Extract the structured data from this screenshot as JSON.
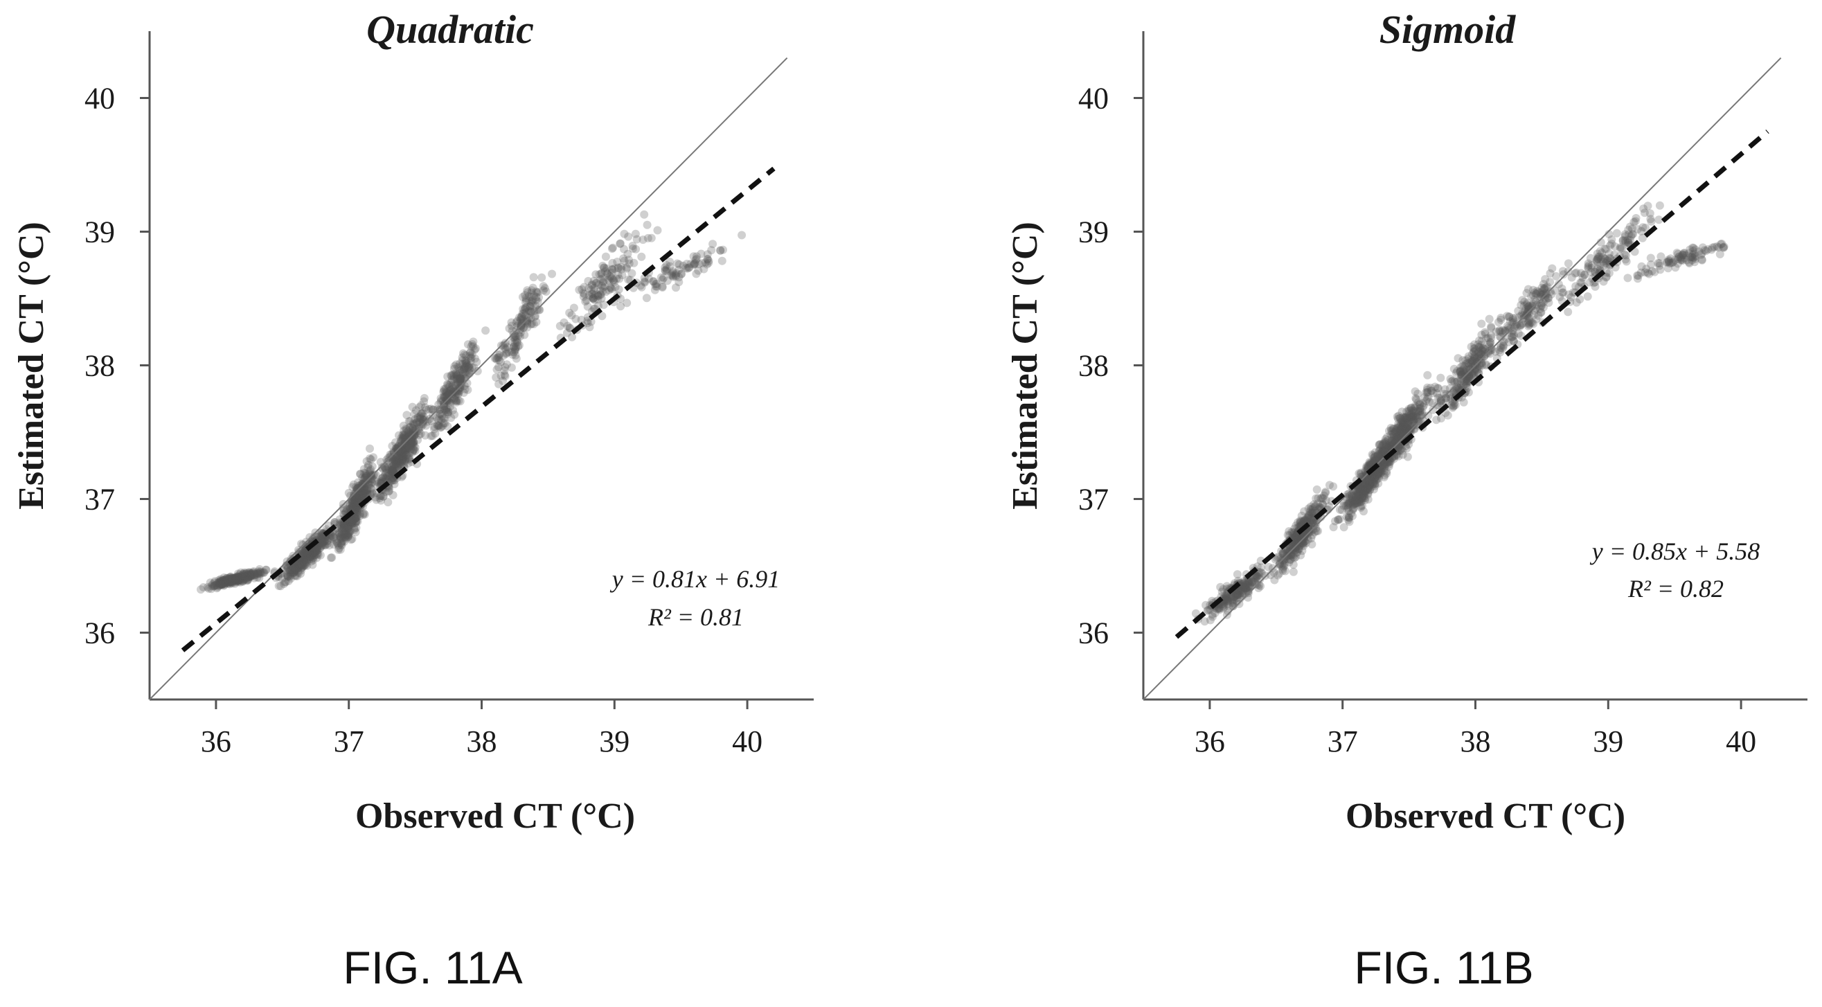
{
  "figure": {
    "captions": [
      "FIG. 11A",
      "FIG. 11B"
    ]
  },
  "chart_data": [
    {
      "type": "scatter",
      "title": "Quadratic",
      "xlabel": "Observed CT (°C)",
      "ylabel": "Estimated CT (°C)",
      "xlim": [
        35.5,
        40.5
      ],
      "ylim": [
        35.5,
        40.5
      ],
      "xticks": [
        "36",
        "37",
        "38",
        "39",
        "40"
      ],
      "yticks": [
        "36",
        "37",
        "38",
        "39",
        "40"
      ],
      "grid": false,
      "legend": "none",
      "point_color": "#555555",
      "trend_color": "#111111",
      "identity_color": "#777777",
      "identity_line": {
        "x": [
          35.5,
          40.3
        ],
        "y": [
          35.5,
          40.3
        ]
      },
      "trendline": {
        "slope": 0.81,
        "intercept": 6.91,
        "x_range": [
          35.75,
          40.2
        ],
        "style": "dashed"
      },
      "annotation": {
        "equation": "y = 0.81x + 6.91",
        "r2": "R² = 0.81"
      },
      "clusters": [
        {
          "x": [
            35.8,
            36.5
          ],
          "y": [
            36.3,
            36.5
          ],
          "n": 260
        },
        {
          "x": [
            36.4,
            37.0
          ],
          "y": [
            36.3,
            36.9
          ],
          "n": 360
        },
        {
          "x": [
            36.8,
            37.3
          ],
          "y": [
            36.4,
            37.5
          ],
          "n": 380
        },
        {
          "x": [
            37.1,
            37.7
          ],
          "y": [
            36.8,
            37.9
          ],
          "n": 360
        },
        {
          "x": [
            37.5,
            38.1
          ],
          "y": [
            37.3,
            38.4
          ],
          "n": 220
        },
        {
          "x": [
            38.0,
            38.6
          ],
          "y": [
            37.7,
            38.9
          ],
          "n": 150
        },
        {
          "x": [
            38.4,
            39.5
          ],
          "y": [
            38.0,
            39.3
          ],
          "n": 140
        },
        {
          "x": [
            38.8,
            40.1
          ],
          "y": [
            38.4,
            39.0
          ],
          "n": 90
        }
      ]
    },
    {
      "type": "scatter",
      "title": "Sigmoid",
      "xlabel": "Observed CT (°C)",
      "ylabel": "Estimated CT (°C)",
      "xlim": [
        35.5,
        40.5
      ],
      "ylim": [
        35.5,
        40.5
      ],
      "xticks": [
        "36",
        "37",
        "38",
        "39",
        "40"
      ],
      "yticks": [
        "36",
        "37",
        "38",
        "39",
        "40"
      ],
      "grid": false,
      "legend": "none",
      "point_color": "#555555",
      "trend_color": "#111111",
      "identity_color": "#777777",
      "identity_line": {
        "x": [
          35.5,
          40.3
        ],
        "y": [
          35.5,
          40.3
        ]
      },
      "trendline": {
        "slope": 0.85,
        "intercept": 5.58,
        "x_range": [
          35.75,
          40.2
        ],
        "style": "dashed"
      },
      "annotation": {
        "equation": "y = 0.85x + 5.58",
        "r2": "R² = 0.82"
      },
      "clusters": [
        {
          "x": [
            35.8,
            36.6
          ],
          "y": [
            36.0,
            36.6
          ],
          "n": 200
        },
        {
          "x": [
            36.4,
            37.0
          ],
          "y": [
            36.3,
            37.2
          ],
          "n": 320
        },
        {
          "x": [
            36.9,
            37.5
          ],
          "y": [
            36.7,
            37.6
          ],
          "n": 400
        },
        {
          "x": [
            37.1,
            37.8
          ],
          "y": [
            37.0,
            38.0
          ],
          "n": 360
        },
        {
          "x": [
            37.6,
            38.3
          ],
          "y": [
            37.4,
            38.5
          ],
          "n": 220
        },
        {
          "x": [
            38.0,
            38.8
          ],
          "y": [
            37.9,
            38.9
          ],
          "n": 160
        },
        {
          "x": [
            38.5,
            39.5
          ],
          "y": [
            38.3,
            39.3
          ],
          "n": 140
        },
        {
          "x": [
            39.0,
            40.1
          ],
          "y": [
            38.6,
            39.0
          ],
          "n": 90
        }
      ]
    }
  ]
}
